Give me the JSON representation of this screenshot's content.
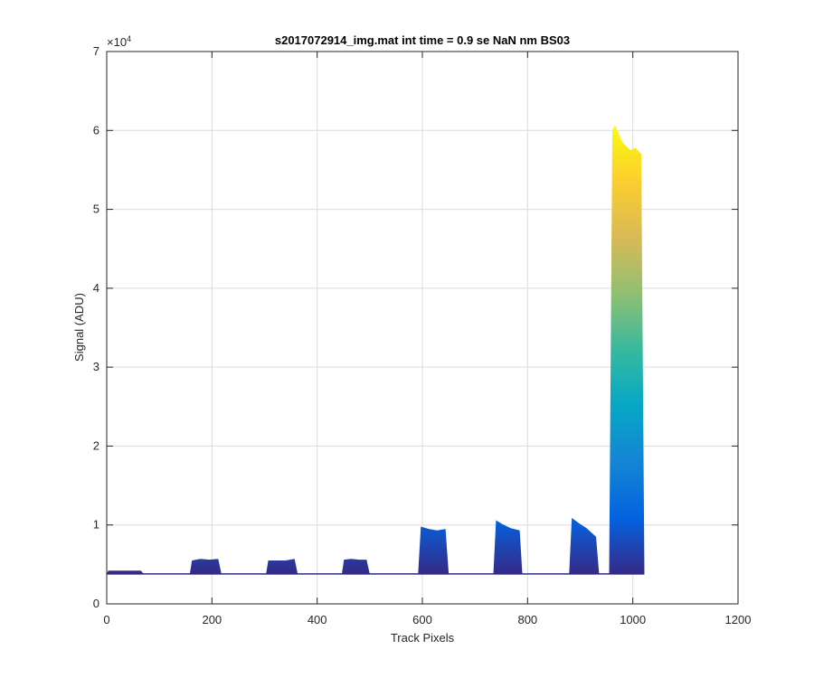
{
  "chart_data": {
    "type": "area",
    "title": "s2017072914_img.mat int time = 0.9 se  NaN nm BS03",
    "xlabel": "Track Pixels",
    "ylabel": "Signal (ADU)",
    "y_exponent_label": "×10",
    "y_exponent_power": "4",
    "xlim": [
      0,
      1200
    ],
    "ylim": [
      0,
      7
    ],
    "y_multiplier": 10000,
    "xticks": [
      0,
      200,
      400,
      600,
      800,
      1000,
      1200
    ],
    "xtick_labels": [
      "0",
      "200",
      "400",
      "600",
      "800",
      "1000",
      "1200"
    ],
    "yticks": [
      0,
      1,
      2,
      3,
      4,
      5,
      6,
      7
    ],
    "ytick_labels": [
      "0",
      "1",
      "2",
      "3",
      "4",
      "5",
      "6",
      "7"
    ],
    "grid": true,
    "baseline": 0.38,
    "colormap": "parula",
    "colormap_stops": [
      "#352a87",
      "#0363e1",
      "#1485d4",
      "#06a7c6",
      "#38b99e",
      "#92bf73",
      "#d9ba56",
      "#fcce2e",
      "#f9fb0e"
    ],
    "segments": [
      {
        "x": [
          0,
          3,
          65,
          70
        ],
        "y": [
          0.38,
          0.42,
          0.42,
          0.38
        ]
      },
      {
        "x": [
          158,
          162,
          178,
          195,
          212,
          218
        ],
        "y": [
          0.38,
          0.55,
          0.57,
          0.56,
          0.57,
          0.38
        ]
      },
      {
        "x": [
          303,
          307,
          325,
          340,
          357,
          363
        ],
        "y": [
          0.38,
          0.55,
          0.55,
          0.55,
          0.57,
          0.38
        ]
      },
      {
        "x": [
          447,
          451,
          465,
          480,
          494,
          500
        ],
        "y": [
          0.38,
          0.56,
          0.57,
          0.56,
          0.56,
          0.38
        ]
      },
      {
        "x": [
          592,
          597,
          612,
          628,
          644,
          650
        ],
        "y": [
          0.38,
          0.98,
          0.95,
          0.93,
          0.95,
          0.38
        ]
      },
      {
        "x": [
          735,
          740,
          752,
          768,
          785,
          790
        ],
        "y": [
          0.38,
          1.06,
          1.01,
          0.96,
          0.93,
          0.38
        ]
      },
      {
        "x": [
          879,
          884,
          896,
          912,
          930,
          936
        ],
        "y": [
          0.38,
          1.09,
          1.03,
          0.96,
          0.85,
          0.38
        ]
      },
      {
        "x": [
          955,
          961,
          966,
          980,
          995,
          1005,
          1016,
          1022
        ],
        "y": [
          0.38,
          6.0,
          6.07,
          5.85,
          5.75,
          5.78,
          5.7,
          0.38
        ]
      }
    ]
  }
}
